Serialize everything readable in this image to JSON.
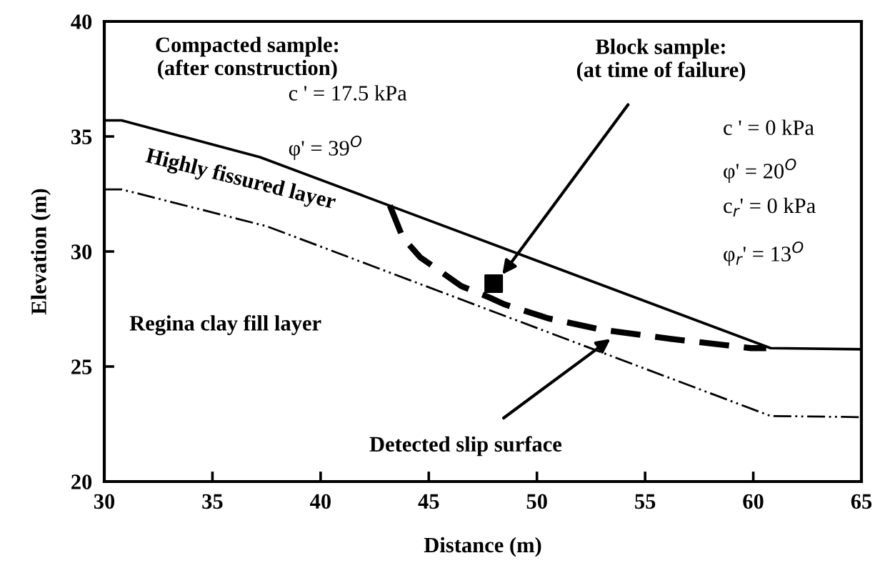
{
  "chart_data": {
    "type": "line",
    "xlabel": "Distance (m)",
    "ylabel": "Elevation (m)",
    "xlim": [
      30,
      65
    ],
    "xticks": [
      30,
      35,
      40,
      45,
      50,
      55,
      60,
      65
    ],
    "ylim": [
      20,
      40
    ],
    "yticks": [
      20,
      25,
      30,
      35,
      40
    ],
    "grid": false,
    "legend": false,
    "series": [
      {
        "color": "#000000",
        "line_style": "solid",
        "marker": "none",
        "x": [
          30,
          30.8,
          37.2,
          60.8,
          65
        ],
        "values": [
          35.7,
          35.7,
          34.1,
          25.8,
          25.75
        ]
      },
      {
        "color": "#000000",
        "line_style": "dashdot",
        "marker": "none",
        "x": [
          30,
          30.8,
          37.5,
          60.8,
          65
        ],
        "values": [
          32.7,
          32.7,
          31.1,
          22.85,
          22.8
        ]
      },
      {
        "color": "#000000",
        "line_style": "dashed",
        "marker": "none",
        "x": [
          43.2,
          43.8,
          44.6,
          46.5,
          47.8,
          48.5,
          50.5,
          53.0,
          56.2,
          59.9,
          60.6
        ],
        "values": [
          32.0,
          30.6,
          29.75,
          28.5,
          28.0,
          27.7,
          27.1,
          26.6,
          26.2,
          25.8,
          25.8
        ]
      },
      {
        "type": "scatter",
        "color": "#000000",
        "marker": "square",
        "x": [
          48.0
        ],
        "values": [
          28.6
        ]
      }
    ],
    "annotations": [
      "Compacted sample:\n(after construction)",
      "c ' = 17.5 kPa",
      "φ' = 39$^{O}$",
      {
        "text": "Block sample:\n(at time of failure)",
        "x": 48.4,
        "y": 29.0
      },
      "c ' = 0 kPa",
      "φ' = 20$^{O}$",
      "c$_{r}$' = 0 kPa",
      "φ$_{r}$' = 13$^{O}$",
      "Highly fissured layer",
      "Regina clay fill layer",
      {
        "text": "Detected slip surface",
        "x": 53.4,
        "y": 26.2
      }
    ]
  }
}
